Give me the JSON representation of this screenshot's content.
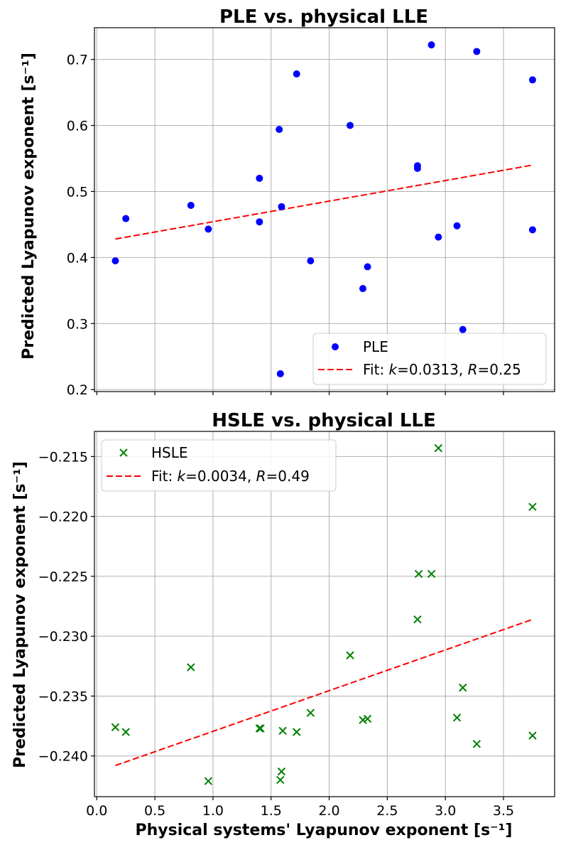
{
  "chart_data": [
    {
      "type": "scatter",
      "title": "PLE vs. physical LLE",
      "xlabel": "",
      "ylabel": "Predicted Lyapunov exponent [s⁻¹]",
      "xlim": [
        -0.02,
        3.94
      ],
      "ylim": [
        0.197,
        0.748
      ],
      "xticks": [
        0.0,
        0.5,
        1.0,
        1.5,
        2.0,
        2.5,
        3.0,
        3.5
      ],
      "xticklabels": [
        "",
        "",
        "",
        "",
        "",
        "",
        "",
        ""
      ],
      "yticks": [
        0.2,
        0.3,
        0.4,
        0.5,
        0.6,
        0.7
      ],
      "yticklabels": [
        "0.2",
        "0.3",
        "0.4",
        "0.5",
        "0.6",
        "0.7"
      ],
      "grid": true,
      "legend_position": "lower right",
      "series": [
        {
          "name": "PLE",
          "marker": "circle",
          "color": "#0000ff",
          "points": [
            [
              0.16,
              0.395
            ],
            [
              0.25,
              0.459
            ],
            [
              0.81,
              0.479
            ],
            [
              0.96,
              0.443
            ],
            [
              1.4,
              0.52
            ],
            [
              1.4,
              0.454
            ],
            [
              1.57,
              0.594
            ],
            [
              1.59,
              0.477
            ],
            [
              1.58,
              0.224
            ],
            [
              1.72,
              0.678
            ],
            [
              1.84,
              0.395
            ],
            [
              2.18,
              0.6
            ],
            [
              2.29,
              0.353
            ],
            [
              2.33,
              0.386
            ],
            [
              2.76,
              0.539
            ],
            [
              2.76,
              0.535
            ],
            [
              2.88,
              0.722
            ],
            [
              2.94,
              0.431
            ],
            [
              3.1,
              0.448
            ],
            [
              3.15,
              0.291
            ],
            [
              3.27,
              0.712
            ],
            [
              3.75,
              0.669
            ],
            [
              3.75,
              0.442
            ]
          ]
        },
        {
          "name": "Fit: k=0.0313, R=0.25",
          "legend_parts": [
            "Fit: ",
            "k",
            "=0.0313, ",
            "R",
            "=0.25"
          ],
          "type": "line",
          "style": "dashed",
          "color": "#ff0000",
          "points": [
            [
              0.16,
              0.428
            ],
            [
              3.75,
              0.54
            ]
          ]
        }
      ]
    },
    {
      "type": "scatter",
      "title": "HSLE vs. physical LLE",
      "xlabel": "Physical systems' Lyapunov exponent [s⁻¹]",
      "ylabel": "Predicted Lyapunov exponent [s⁻¹]",
      "xlim": [
        -0.02,
        3.94
      ],
      "ylim": [
        -0.2434,
        -0.2129
      ],
      "xticks": [
        0.0,
        0.5,
        1.0,
        1.5,
        2.0,
        2.5,
        3.0,
        3.5
      ],
      "xticklabels": [
        "0.0",
        "0.5",
        "1.0",
        "1.5",
        "2.0",
        "2.5",
        "3.0",
        "3.5"
      ],
      "yticks": [
        -0.24,
        -0.235,
        -0.23,
        -0.225,
        -0.22,
        -0.215
      ],
      "yticklabels": [
        "−0.240",
        "−0.235",
        "−0.230",
        "−0.225",
        "−0.220",
        "−0.215"
      ],
      "grid": true,
      "legend_position": "upper left",
      "series": [
        {
          "name": "HSLE",
          "marker": "x",
          "color": "#008000",
          "points": [
            [
              0.16,
              -0.2376
            ],
            [
              0.25,
              -0.238
            ],
            [
              0.81,
              -0.2326
            ],
            [
              0.96,
              -0.2421
            ],
            [
              1.4,
              -0.2377
            ],
            [
              1.41,
              -0.2377
            ],
            [
              1.58,
              -0.242
            ],
            [
              1.59,
              -0.2413
            ],
            [
              1.6,
              -0.2379
            ],
            [
              1.72,
              -0.238
            ],
            [
              1.84,
              -0.2364
            ],
            [
              2.18,
              -0.2316
            ],
            [
              2.29,
              -0.237
            ],
            [
              2.33,
              -0.2369
            ],
            [
              2.76,
              -0.2286
            ],
            [
              2.77,
              -0.2248
            ],
            [
              2.88,
              -0.2248
            ],
            [
              2.94,
              -0.2143
            ],
            [
              3.1,
              -0.2368
            ],
            [
              3.15,
              -0.2343
            ],
            [
              3.27,
              -0.239
            ],
            [
              3.75,
              -0.2192
            ],
            [
              3.75,
              -0.2383
            ]
          ]
        },
        {
          "name": "Fit: k=0.0034, R=0.49",
          "legend_parts": [
            "Fit: ",
            "k",
            "=0.0034, ",
            "R",
            "=0.49"
          ],
          "type": "line",
          "style": "dashed",
          "color": "#ff0000",
          "points": [
            [
              0.16,
              -0.2408
            ],
            [
              3.75,
              -0.2286
            ]
          ]
        }
      ]
    }
  ]
}
